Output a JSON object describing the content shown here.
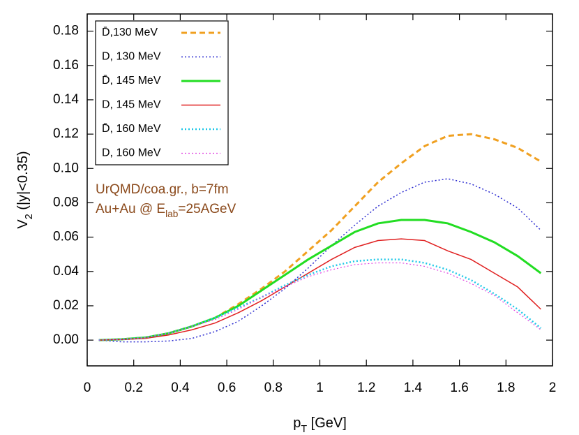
{
  "chart_data": {
    "type": "line",
    "xlabel": [
      "p",
      "T",
      " [GeV]"
    ],
    "ylabel": [
      "V",
      "2",
      " (|y|<0.35)"
    ],
    "annotations": [
      [
        "UrQMD/coa.gr., b=7fm"
      ],
      [
        "Au+Au @ E",
        "lab",
        "=25AGeV"
      ]
    ],
    "annotation_color": "#8b4a1c",
    "legend": "upper left",
    "x": [
      0.05,
      0.15,
      0.25,
      0.35,
      0.45,
      0.55,
      0.65,
      0.75,
      0.85,
      0.95,
      1.05,
      1.15,
      1.25,
      1.35,
      1.45,
      1.55,
      1.65,
      1.75,
      1.85,
      1.95
    ],
    "series": [
      {
        "name": "D̄,130 MeV",
        "color": "#f0a020",
        "style": "dashed",
        "linewidth": 3,
        "values": [
          0,
          0.0005,
          0.0015,
          0.004,
          0.008,
          0.013,
          0.021,
          0.03,
          0.04,
          0.052,
          0.064,
          0.078,
          0.092,
          0.103,
          0.113,
          0.119,
          0.12,
          0.117,
          0.112,
          0.104
        ]
      },
      {
        "name": "D, 130 MeV",
        "color": "#2a2ad0",
        "style": "dotted",
        "linewidth": 1.5,
        "values": [
          0,
          -0.001,
          -0.001,
          -0.0005,
          0.001,
          0.005,
          0.011,
          0.02,
          0.03,
          0.042,
          0.055,
          0.067,
          0.078,
          0.086,
          0.092,
          0.094,
          0.091,
          0.085,
          0.077,
          0.064
        ]
      },
      {
        "name": "D̄, 145 MeV",
        "color": "#22dd22",
        "style": "solid",
        "linewidth": 3,
        "values": [
          0,
          0.0005,
          0.0015,
          0.004,
          0.008,
          0.013,
          0.02,
          0.029,
          0.038,
          0.047,
          0.055,
          0.063,
          0.068,
          0.07,
          0.07,
          0.068,
          0.063,
          0.057,
          0.049,
          0.039
        ]
      },
      {
        "name": "D, 145 MeV",
        "color": "#e02020",
        "style": "solid",
        "linewidth": 1.5,
        "values": [
          0,
          0.0003,
          0.001,
          0.003,
          0.006,
          0.01,
          0.016,
          0.023,
          0.031,
          0.039,
          0.047,
          0.054,
          0.058,
          0.059,
          0.058,
          0.052,
          0.047,
          0.039,
          0.031,
          0.018
        ]
      },
      {
        "name": "D̄, 160 MeV",
        "color": "#20c8e8",
        "style": "dotted",
        "linewidth": 2.5,
        "values": [
          0,
          0.0005,
          0.0015,
          0.004,
          0.008,
          0.013,
          0.019,
          0.025,
          0.032,
          0.038,
          0.043,
          0.046,
          0.047,
          0.047,
          0.045,
          0.041,
          0.035,
          0.027,
          0.018,
          0.007
        ]
      },
      {
        "name": "D, 160 MeV",
        "color": "#e040e0",
        "style": "dotted",
        "linewidth": 1.2,
        "values": [
          0,
          0.0005,
          0.0015,
          0.004,
          0.008,
          0.012,
          0.018,
          0.025,
          0.031,
          0.037,
          0.041,
          0.044,
          0.045,
          0.045,
          0.043,
          0.039,
          0.033,
          0.026,
          0.016,
          0.006
        ]
      }
    ],
    "xlim": [
      0,
      2
    ],
    "xticks": [
      0,
      0.2,
      0.4,
      0.6,
      0.8,
      1,
      1.2,
      1.4,
      1.6,
      1.8,
      2
    ],
    "ylim": [
      -0.015,
      0.19
    ],
    "yticks": [
      {
        "value": 0,
        "label": "0.00"
      },
      {
        "value": 0.02,
        "label": "0.02"
      },
      {
        "value": 0.04,
        "label": "0.04"
      },
      {
        "value": 0.06,
        "label": "0.06"
      },
      {
        "value": 0.08,
        "label": "0.08"
      },
      {
        "value": 0.1,
        "label": "0.10"
      },
      {
        "value": 0.12,
        "label": "0.12"
      },
      {
        "value": 0.14,
        "label": "0.14"
      },
      {
        "value": 0.16,
        "label": "0.16"
      },
      {
        "value": 0.18,
        "label": "0.18"
      }
    ]
  }
}
